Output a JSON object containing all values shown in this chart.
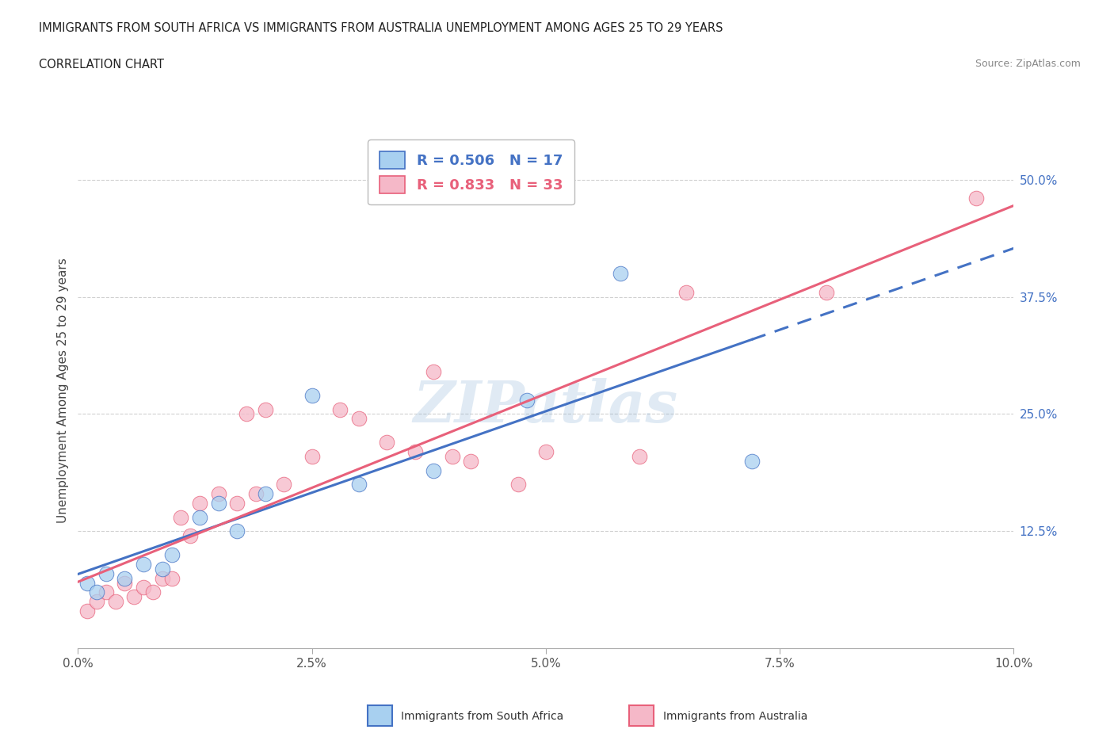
{
  "title_line1": "IMMIGRANTS FROM SOUTH AFRICA VS IMMIGRANTS FROM AUSTRALIA UNEMPLOYMENT AMONG AGES 25 TO 29 YEARS",
  "title_line2": "CORRELATION CHART",
  "source_text": "Source: ZipAtlas.com",
  "ylabel": "Unemployment Among Ages 25 to 29 years",
  "xlim": [
    0.0,
    0.1
  ],
  "ylim": [
    0.0,
    0.55
  ],
  "xtick_labels": [
    "0.0%",
    "2.5%",
    "5.0%",
    "7.5%",
    "10.0%"
  ],
  "xtick_vals": [
    0.0,
    0.025,
    0.05,
    0.075,
    0.1
  ],
  "ytick_labels": [
    "12.5%",
    "25.0%",
    "37.5%",
    "50.0%"
  ],
  "ytick_vals": [
    0.125,
    0.25,
    0.375,
    0.5
  ],
  "color_sa": "#a8d0f0",
  "color_au": "#f5b8c8",
  "color_sa_line": "#4472c4",
  "color_au_line": "#e8607a",
  "watermark_text": "ZIPatlas",
  "sa_x": [
    0.001,
    0.002,
    0.003,
    0.005,
    0.007,
    0.009,
    0.01,
    0.013,
    0.015,
    0.017,
    0.02,
    0.025,
    0.03,
    0.038,
    0.048,
    0.058,
    0.072
  ],
  "sa_y": [
    0.07,
    0.06,
    0.08,
    0.075,
    0.09,
    0.085,
    0.1,
    0.14,
    0.155,
    0.125,
    0.165,
    0.27,
    0.175,
    0.19,
    0.265,
    0.4,
    0.2
  ],
  "au_x": [
    0.001,
    0.002,
    0.003,
    0.004,
    0.005,
    0.006,
    0.007,
    0.008,
    0.009,
    0.01,
    0.011,
    0.012,
    0.013,
    0.015,
    0.017,
    0.018,
    0.019,
    0.02,
    0.022,
    0.025,
    0.028,
    0.03,
    0.033,
    0.036,
    0.038,
    0.04,
    0.042,
    0.047,
    0.05,
    0.06,
    0.065,
    0.08,
    0.096
  ],
  "au_y": [
    0.04,
    0.05,
    0.06,
    0.05,
    0.07,
    0.055,
    0.065,
    0.06,
    0.075,
    0.075,
    0.14,
    0.12,
    0.155,
    0.165,
    0.155,
    0.25,
    0.165,
    0.255,
    0.175,
    0.205,
    0.255,
    0.245,
    0.22,
    0.21,
    0.295,
    0.205,
    0.2,
    0.175,
    0.21,
    0.205,
    0.38,
    0.38,
    0.48
  ],
  "background_color": "#ffffff",
  "grid_color": "#d0d0d0"
}
